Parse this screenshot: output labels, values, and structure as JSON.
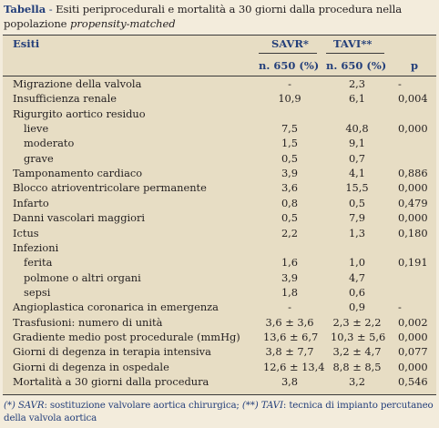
{
  "caption": {
    "label": "Tabella",
    "dash": " - ",
    "text": "Esiti periprocedurali e mortalità a 30 giorni dalla procedura nella popolazione ",
    "italic": "propensity-matched"
  },
  "header": {
    "col_esiti": "Esiti",
    "col_savr": "SAVR*",
    "col_tavi": "TAVI**",
    "sub_savr": "n. 650 (%)",
    "sub_tavi": "n. 650 (%)",
    "sub_p": "p"
  },
  "rows": [
    {
      "label": "Migrazione della valvola",
      "indent": false,
      "savr": "-",
      "tavi": "2,3",
      "p": "-"
    },
    {
      "label": "Insufficienza renale",
      "indent": false,
      "savr": "10,9",
      "tavi": "6,1",
      "p": "0,004"
    },
    {
      "label": "Rigurgito aortico residuo",
      "indent": false,
      "savr": "",
      "tavi": "",
      "p": ""
    },
    {
      "label": "lieve",
      "indent": true,
      "savr": "7,5",
      "tavi": "40,8",
      "p": "0,000"
    },
    {
      "label": "moderato",
      "indent": true,
      "savr": "1,5",
      "tavi": "9,1",
      "p": ""
    },
    {
      "label": "grave",
      "indent": true,
      "savr": "0,5",
      "tavi": "0,7",
      "p": ""
    },
    {
      "label": "Tamponamento cardiaco",
      "indent": false,
      "savr": "3,9",
      "tavi": "4,1",
      "p": "0,886"
    },
    {
      "label": "Blocco atrioventricolare permanente",
      "indent": false,
      "savr": "3,6",
      "tavi": "15,5",
      "p": "0,000"
    },
    {
      "label": "Infarto",
      "indent": false,
      "savr": "0,8",
      "tavi": "0,5",
      "p": "0,479"
    },
    {
      "label": "Danni vascolari maggiori",
      "indent": false,
      "savr": "0,5",
      "tavi": "7,9",
      "p": "0,000"
    },
    {
      "label": "Ictus",
      "indent": false,
      "savr": "2,2",
      "tavi": "1,3",
      "p": "0,180"
    },
    {
      "label": "Infezioni",
      "indent": false,
      "savr": "",
      "tavi": "",
      "p": ""
    },
    {
      "label": "ferita",
      "indent": true,
      "savr": "1,6",
      "tavi": "1,0",
      "p": "0,191"
    },
    {
      "label": "polmone o altri organi",
      "indent": true,
      "savr": "3,9",
      "tavi": "4,7",
      "p": ""
    },
    {
      "label": "sepsi",
      "indent": true,
      "savr": "1,8",
      "tavi": "0,6",
      "p": ""
    },
    {
      "label": "Angioplastica coronarica in emergenza",
      "indent": false,
      "savr": "-",
      "tavi": "0,9",
      "p": "-"
    },
    {
      "label": "Trasfusioni: numero di unità",
      "indent": false,
      "savr": "3,6 ± 3,6",
      "tavi": "2,3 ± 2,2",
      "p": "0,002"
    },
    {
      "label": "Gradiente medio post procedurale (mmHg)",
      "indent": false,
      "savr": "13,6 ± 6,7",
      "tavi": "10,3 ± 5,6",
      "p": "0,000"
    },
    {
      "label": "Giorni di degenza in terapia intensiva",
      "indent": false,
      "savr": "3,8 ± 7,7",
      "tavi": "3,2 ± 4,7",
      "p": "0,077"
    },
    {
      "label": "Giorni di degenza in ospedale",
      "indent": false,
      "savr": "12,6 ± 13,4",
      "tavi": "8,8 ± 8,5",
      "p": "0,000"
    },
    {
      "label": "Mortalità a 30 giorni dalla procedura",
      "indent": false,
      "savr": "3,8",
      "tavi": "3,2",
      "p": "0,546"
    }
  ],
  "footnote": {
    "a": "(*) SAVR",
    "b": ": sostituzione valvolare aortica chirurgica; ",
    "c": "(**) TAVI",
    "d": ": tecnica di impianto percutaneo della valvola aortica"
  }
}
